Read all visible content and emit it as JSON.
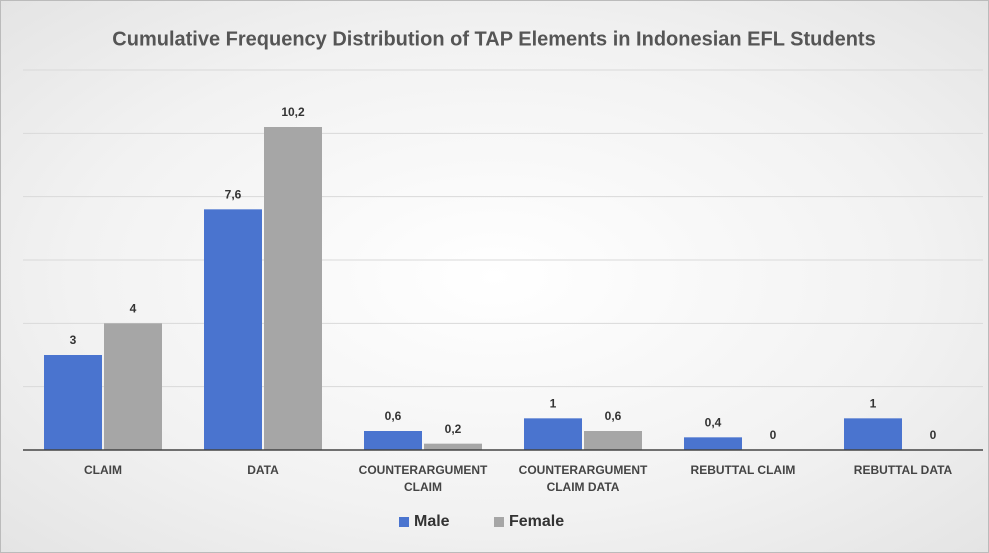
{
  "chart_data": {
    "type": "bar",
    "title": "Cumulative Frequency Distribution of TAP Elements in Indonesian EFL Students",
    "categories": [
      "CLAIM",
      "DATA",
      "COUNTERARGUMENT CLAIM",
      "COUNTERARGUMENT CLAIM DATA",
      "REBUTTAL CLAIM",
      "REBUTTAL DATA"
    ],
    "series": [
      {
        "name": "Male",
        "color": "#4a74cf",
        "values": [
          3,
          7.6,
          0.6,
          1,
          0.4,
          1
        ],
        "value_labels": [
          "3",
          "7,6",
          "0,6",
          "1",
          "0,4",
          "1"
        ]
      },
      {
        "name": "Female",
        "color": "#a6a6a6",
        "values": [
          4,
          10.2,
          0.2,
          0.6,
          0,
          0
        ],
        "value_labels": [
          "4",
          "10,2",
          "0,2",
          "0,6",
          "0",
          "0"
        ]
      }
    ],
    "ylim": [
      0,
      12
    ],
    "yticks": [
      0,
      2,
      4,
      6,
      8,
      10,
      12
    ],
    "grid": true,
    "legend": "bottom"
  }
}
